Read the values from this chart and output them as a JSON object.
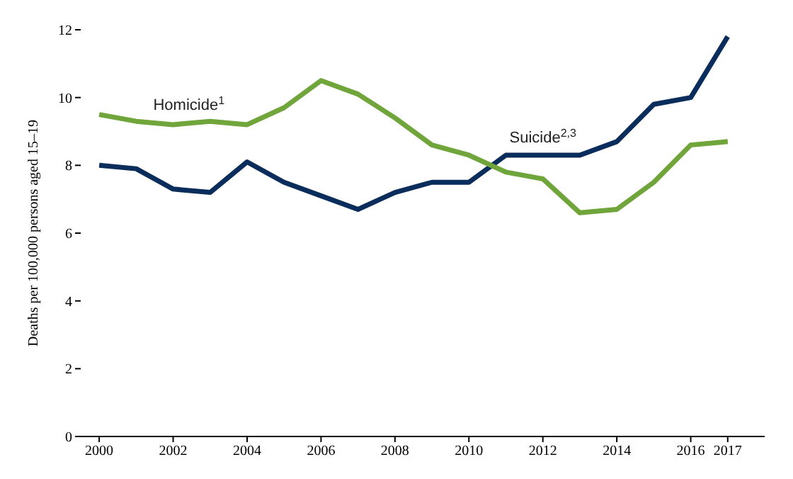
{
  "chart_data": {
    "type": "line",
    "ylabel": "Deaths per 100,000 persons aged 15–19",
    "x": [
      2000,
      2001,
      2002,
      2003,
      2004,
      2005,
      2006,
      2007,
      2008,
      2009,
      2010,
      2011,
      2012,
      2013,
      2014,
      2015,
      2016,
      2017
    ],
    "series": [
      {
        "name": "Suicide$^{2,3}$",
        "color": "#0b2d5b",
        "values": [
          8.0,
          7.9,
          7.3,
          7.2,
          8.1,
          7.5,
          7.1,
          6.7,
          7.2,
          7.5,
          7.5,
          8.3,
          8.3,
          8.3,
          8.7,
          9.8,
          10.0,
          11.8
        ]
      },
      {
        "name": "Homicide$^{1}$",
        "color": "#6fa53a",
        "values": [
          9.5,
          9.3,
          9.2,
          9.3,
          9.2,
          9.7,
          10.5,
          10.1,
          9.4,
          8.6,
          8.3,
          7.8,
          7.6,
          6.6,
          6.7,
          7.5,
          8.6,
          8.7
        ]
      }
    ],
    "xlim": [
      1999.5,
      2018
    ],
    "xticks": [
      2000,
      2002,
      2004,
      2006,
      2008,
      2010,
      2012,
      2014,
      2016,
      2017
    ],
    "ylim": [
      0,
      12
    ],
    "yticks": [
      0,
      2,
      4,
      6,
      8,
      10,
      12
    ],
    "grid": false,
    "legend": false,
    "marker": "none",
    "line_style": "solid"
  }
}
